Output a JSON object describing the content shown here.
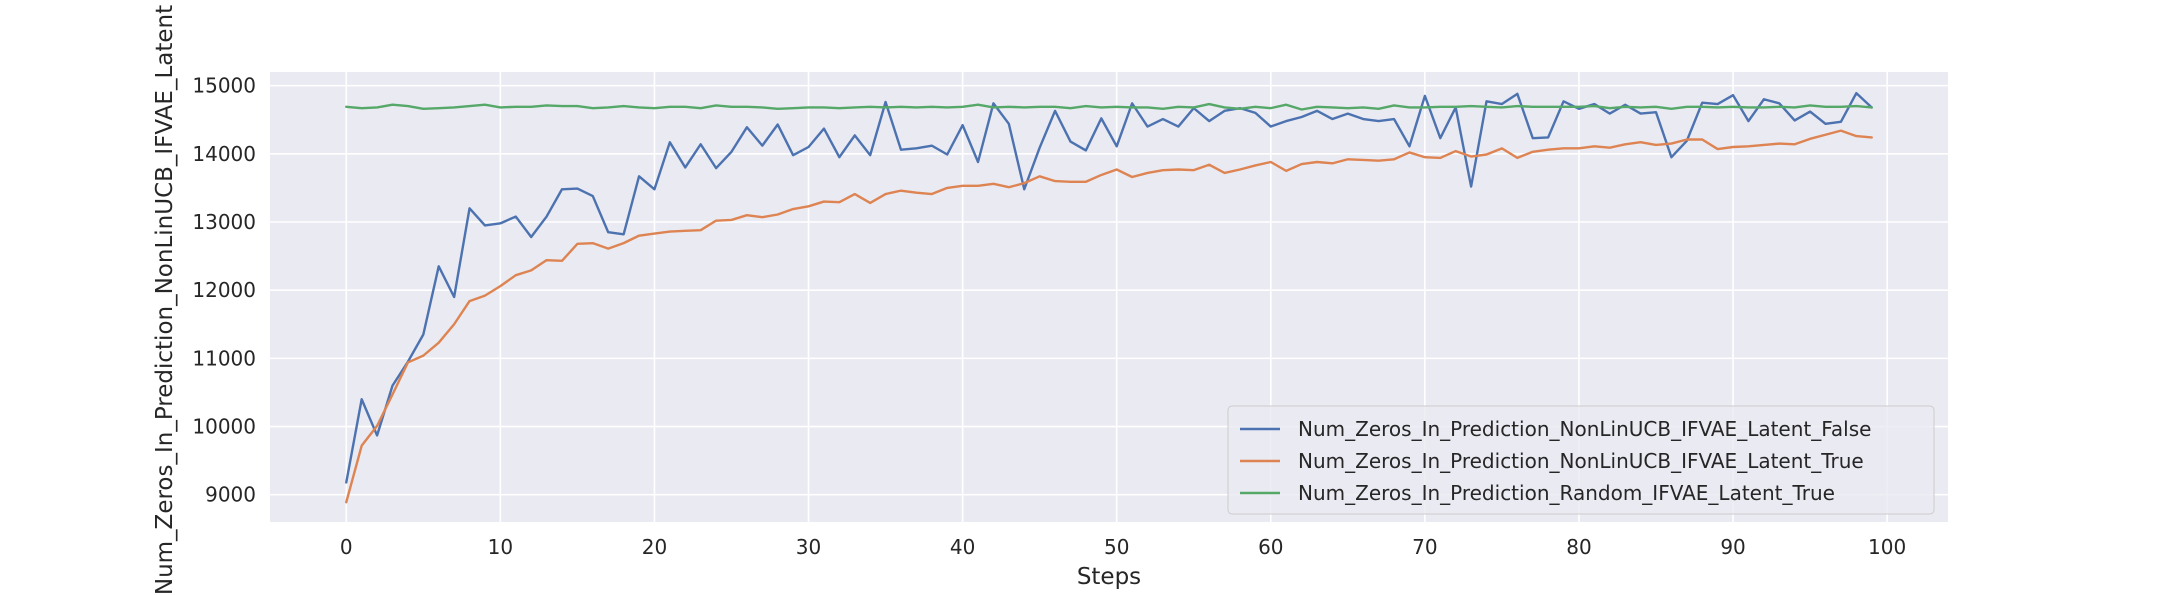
{
  "chart_data": {
    "type": "line",
    "title": "",
    "xlabel": "Steps",
    "ylabel": "Num_Zeros_In_Prediction_NonLinUCB_IFVAE_Latent",
    "xlim": [
      -4.95,
      103.95
    ],
    "ylim": [
      8600,
      15200
    ],
    "xticks": [
      0,
      10,
      20,
      30,
      40,
      50,
      60,
      70,
      80,
      90,
      100
    ],
    "yticks": [
      9000,
      10000,
      11000,
      12000,
      13000,
      14000,
      15000
    ],
    "grid": true,
    "legend_position": "lower-right",
    "x": [
      0,
      1,
      2,
      3,
      4,
      5,
      6,
      7,
      8,
      9,
      10,
      11,
      12,
      13,
      14,
      15,
      16,
      17,
      18,
      19,
      20,
      21,
      22,
      23,
      24,
      25,
      26,
      27,
      28,
      29,
      30,
      31,
      32,
      33,
      34,
      35,
      36,
      37,
      38,
      39,
      40,
      41,
      42,
      43,
      44,
      45,
      46,
      47,
      48,
      49,
      50,
      51,
      52,
      53,
      54,
      55,
      56,
      57,
      58,
      59,
      60,
      61,
      62,
      63,
      64,
      65,
      66,
      67,
      68,
      69,
      70,
      71,
      72,
      73,
      74,
      75,
      76,
      77,
      78,
      79,
      80,
      81,
      82,
      83,
      84,
      85,
      86,
      87,
      88,
      89,
      90,
      91,
      92,
      93,
      94,
      95,
      96,
      97,
      98,
      99
    ],
    "series": [
      {
        "name": "Num_Zeros_In_Prediction_NonLinUCB_IFVAE_Latent_False",
        "color": "#4c72b0",
        "values": [
          9180,
          10400,
          9870,
          10600,
          10950,
          11350,
          12350,
          11900,
          13200,
          12950,
          12980,
          13080,
          12780,
          13080,
          13480,
          13490,
          13380,
          12850,
          12820,
          13670,
          13480,
          14170,
          13800,
          14140,
          13790,
          14030,
          14390,
          14120,
          14430,
          13980,
          14100,
          14370,
          13950,
          14270,
          13980,
          14760,
          14060,
          14080,
          14120,
          13990,
          14420,
          13880,
          14740,
          14440,
          13480,
          14090,
          14630,
          14180,
          14050,
          14520,
          14110,
          14740,
          14400,
          14510,
          14400,
          14670,
          14480,
          14630,
          14670,
          14600,
          14400,
          14480,
          14540,
          14630,
          14510,
          14590,
          14510,
          14480,
          14510,
          14110,
          14850,
          14230,
          14680,
          13520,
          14770,
          14730,
          14880,
          14230,
          14240,
          14770,
          14660,
          14730,
          14590,
          14720,
          14590,
          14610,
          13950,
          14190,
          14750,
          14730,
          14860,
          14480,
          14800,
          14740,
          14490,
          14620,
          14440,
          14470,
          14890,
          14680
        ]
      },
      {
        "name": "Num_Zeros_In_Prediction_NonLinUCB_IFVAE_Latent_True",
        "color": "#dd8452",
        "values": [
          8890,
          9720,
          10010,
          10470,
          10940,
          11040,
          11230,
          11500,
          11840,
          11920,
          12060,
          12220,
          12290,
          12440,
          12430,
          12680,
          12690,
          12610,
          12690,
          12800,
          12830,
          12860,
          12870,
          12880,
          13020,
          13030,
          13100,
          13070,
          13110,
          13190,
          13230,
          13300,
          13290,
          13410,
          13280,
          13410,
          13460,
          13430,
          13410,
          13500,
          13530,
          13530,
          13560,
          13510,
          13570,
          13670,
          13600,
          13590,
          13590,
          13690,
          13770,
          13660,
          13720,
          13760,
          13770,
          13760,
          13840,
          13720,
          13770,
          13830,
          13880,
          13750,
          13850,
          13880,
          13860,
          13920,
          13910,
          13900,
          13920,
          14020,
          13950,
          13940,
          14040,
          13960,
          13990,
          14080,
          13940,
          14030,
          14060,
          14080,
          14080,
          14110,
          14090,
          14140,
          14170,
          14130,
          14150,
          14210,
          14210,
          14070,
          14100,
          14110,
          14130,
          14150,
          14140,
          14220,
          14280,
          14340,
          14260,
          14240
        ]
      },
      {
        "name": "Num_Zeros_In_Prediction_Random_IFVAE_Latent_True",
        "color": "#55a868",
        "values": [
          14690,
          14670,
          14680,
          14720,
          14700,
          14660,
          14670,
          14680,
          14700,
          14720,
          14680,
          14690,
          14690,
          14710,
          14700,
          14700,
          14670,
          14680,
          14700,
          14680,
          14670,
          14690,
          14690,
          14670,
          14710,
          14690,
          14690,
          14680,
          14660,
          14670,
          14680,
          14680,
          14670,
          14680,
          14690,
          14680,
          14690,
          14680,
          14690,
          14680,
          14690,
          14720,
          14680,
          14690,
          14680,
          14690,
          14690,
          14670,
          14700,
          14680,
          14690,
          14680,
          14680,
          14660,
          14690,
          14680,
          14730,
          14680,
          14660,
          14690,
          14670,
          14720,
          14650,
          14690,
          14680,
          14670,
          14680,
          14660,
          14710,
          14680,
          14680,
          14690,
          14690,
          14700,
          14690,
          14680,
          14700,
          14690,
          14690,
          14690,
          14690,
          14700,
          14670,
          14690,
          14680,
          14690,
          14660,
          14690,
          14690,
          14680,
          14690,
          14680,
          14680,
          14690,
          14680,
          14710,
          14690,
          14690,
          14700,
          14680
        ]
      }
    ]
  }
}
